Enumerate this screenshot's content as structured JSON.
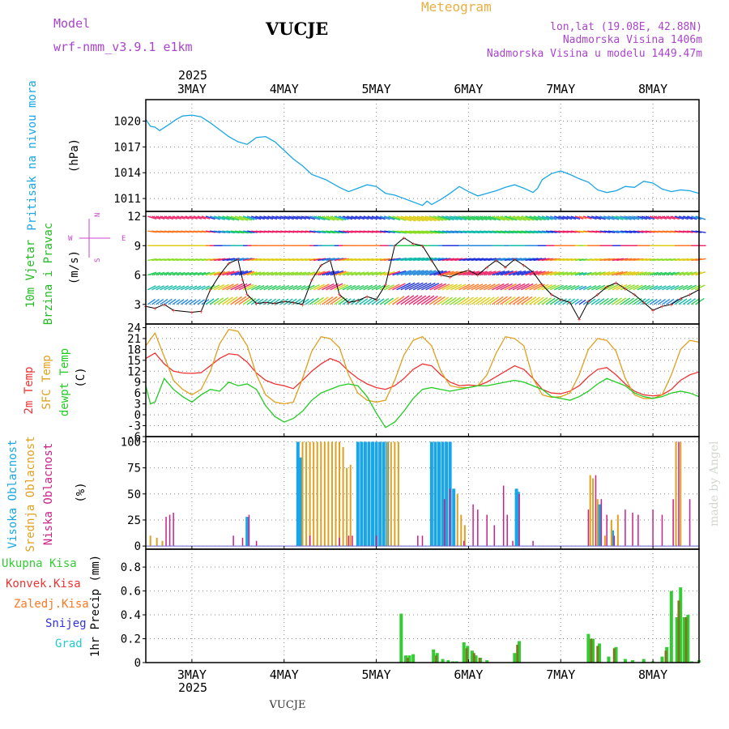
{
  "header": {
    "model_label": "Model",
    "model_value": "wrf-nmm_v3.9.1  e1km",
    "station": "VUCJE",
    "product": "Meteogram",
    "coords": "lon,lat (19.08E, 42.88N)",
    "elevation": "Nadmorska Visina 1406m",
    "model_elevation": "Nadmorska Visina u modelu 1449.47m",
    "footer_station": "VUCJE",
    "watermark": "made by Angel"
  },
  "colors": {
    "pressure": "#1aa6e6",
    "wind_label": "#22bb22",
    "temp2m": "#ee3333",
    "sfc": "#e0a020",
    "dewpt": "#22cc22",
    "high_cloud": "#1aa6e6",
    "mid_cloud": "#e0a020",
    "low_cloud": "#cc2288",
    "total_precip": "#33cc33",
    "convective": "#ee3333",
    "frozen": "#ff7722",
    "snow": "#3333dd",
    "hail": "#22cccc",
    "compass": "#cc44cc"
  },
  "chart_data": [
    {
      "type": "line",
      "panel": "pressure",
      "ylabel_lines": [
        "Pritisak na nivou mora",
        "(hPa)"
      ],
      "ylim": [
        1009.5,
        1022.5
      ],
      "yticks": [
        1011,
        1014,
        1017,
        1020
      ],
      "grid": true,
      "x_days": [
        2.5,
        8.5
      ],
      "day_ticks": [
        "3MAY",
        "4MAY",
        "5MAY",
        "6MAY",
        "7MAY",
        "8MAY"
      ],
      "year_label": "2025",
      "series": [
        {
          "x": [
            2.5,
            2.55,
            2.6,
            2.65,
            2.75,
            2.83,
            2.9,
            3.0,
            3.1,
            3.2,
            3.3,
            3.4,
            3.5,
            3.6,
            3.7,
            3.8,
            3.9,
            4.0,
            4.1,
            4.2,
            4.3,
            4.45,
            4.6,
            4.7,
            4.8,
            4.9,
            5.0,
            5.1,
            5.2,
            5.3,
            5.4,
            5.5,
            5.55,
            5.6,
            5.7,
            5.8,
            5.9,
            6.0,
            6.1,
            6.2,
            6.3,
            6.4,
            6.5,
            6.6,
            6.7,
            6.75,
            6.8,
            6.9,
            7.0,
            7.1,
            7.2,
            7.3,
            7.4,
            7.5,
            7.6,
            7.7,
            7.8,
            7.9,
            8.0,
            8.1,
            8.2,
            8.3,
            8.4,
            8.5
          ],
          "y": [
            1020.2,
            1019.4,
            1019.3,
            1018.9,
            1019.6,
            1020.2,
            1020.6,
            1020.7,
            1020.5,
            1019.8,
            1019.0,
            1018.2,
            1017.6,
            1017.3,
            1018.1,
            1018.2,
            1017.6,
            1016.6,
            1015.6,
            1014.8,
            1013.8,
            1013.2,
            1012.3,
            1011.8,
            1012.2,
            1012.6,
            1012.4,
            1011.6,
            1011.4,
            1011.0,
            1010.6,
            1010.2,
            1010.7,
            1010.3,
            1010.9,
            1011.6,
            1012.4,
            1011.8,
            1011.3,
            1011.6,
            1011.9,
            1012.3,
            1012.6,
            1012.2,
            1011.7,
            1012.2,
            1013.2,
            1013.9,
            1014.2,
            1013.8,
            1013.3,
            1012.9,
            1012.0,
            1011.7,
            1011.9,
            1012.4,
            1012.3,
            1013.0,
            1012.8,
            1012.1,
            1011.8,
            1012.0,
            1011.9,
            1011.6
          ]
        }
      ]
    },
    {
      "type": "line",
      "panel": "wind",
      "ylabel_lines": [
        "10m Vjetar",
        "Brzina i Pravac",
        "(m/s)"
      ],
      "compass": {
        "n": "N",
        "s": "S",
        "e": "E",
        "w": "W"
      },
      "ylim": [
        1,
        12.5
      ],
      "yticks": [
        3,
        6,
        9,
        12
      ],
      "grid": true,
      "series": [
        {
          "name": "speed",
          "x": [
            2.5,
            2.6,
            2.7,
            2.8,
            3.0,
            3.1,
            3.2,
            3.3,
            3.4,
            3.5,
            3.55,
            3.6,
            3.7,
            3.8,
            3.9,
            4.0,
            4.1,
            4.2,
            4.3,
            4.4,
            4.5,
            4.6,
            4.7,
            4.8,
            4.9,
            5.0,
            5.1,
            5.2,
            5.3,
            5.4,
            5.5,
            5.6,
            5.7,
            5.8,
            5.9,
            6.0,
            6.1,
            6.2,
            6.3,
            6.4,
            6.5,
            6.6,
            6.7,
            6.8,
            6.9,
            7.0,
            7.1,
            7.2,
            7.3,
            7.4,
            7.5,
            7.6,
            7.7,
            7.8,
            7.9,
            8.0,
            8.1,
            8.2,
            8.3,
            8.4,
            8.5
          ],
          "y": [
            2.8,
            2.6,
            3.0,
            2.4,
            2.2,
            2.3,
            4.5,
            6.0,
            7.2,
            7.6,
            5.5,
            4.0,
            3.1,
            3.2,
            3.1,
            3.3,
            3.2,
            3.0,
            5.5,
            7.0,
            7.5,
            4.0,
            3.2,
            3.4,
            3.8,
            3.5,
            5.0,
            9.0,
            9.8,
            9.2,
            9.0,
            7.5,
            6.0,
            5.8,
            6.2,
            6.5,
            6.0,
            6.8,
            7.5,
            6.8,
            7.6,
            7.0,
            6.3,
            5.0,
            4.0,
            3.5,
            3.2,
            1.5,
            3.3,
            4.0,
            4.8,
            5.2,
            4.6,
            4.0,
            3.2,
            2.4,
            2.8,
            3.0,
            3.6,
            4.0,
            4.5
          ]
        }
      ]
    },
    {
      "type": "line",
      "panel": "temperature",
      "ylabel_lines": [
        "2m Temp",
        "SFC Temp",
        "dewpt Temp",
        "(C)"
      ],
      "ylim": [
        -6,
        25
      ],
      "yticks": [
        -6,
        -3,
        0,
        3,
        6,
        9,
        12,
        15,
        18,
        21,
        24
      ],
      "grid": true,
      "series": [
        {
          "name": "2m Temp",
          "x": [
            2.5,
            2.6,
            2.7,
            2.8,
            2.9,
            3.0,
            3.1,
            3.2,
            3.3,
            3.4,
            3.5,
            3.6,
            3.7,
            3.8,
            3.9,
            4.0,
            4.1,
            4.2,
            4.3,
            4.4,
            4.5,
            4.6,
            4.7,
            4.8,
            4.9,
            5.0,
            5.1,
            5.2,
            5.3,
            5.4,
            5.5,
            5.6,
            5.7,
            5.8,
            5.9,
            6.0,
            6.1,
            6.2,
            6.3,
            6.4,
            6.5,
            6.6,
            6.7,
            6.8,
            6.9,
            7.0,
            7.1,
            7.2,
            7.3,
            7.4,
            7.5,
            7.6,
            7.7,
            7.8,
            7.9,
            8.0,
            8.1,
            8.2,
            8.3,
            8.4,
            8.5
          ],
          "y": [
            15.5,
            17.0,
            14.0,
            12.0,
            11.5,
            11.4,
            11.6,
            13.5,
            15.5,
            16.8,
            16.5,
            14.5,
            11.5,
            9.5,
            8.5,
            8.0,
            7.2,
            9.5,
            12.0,
            14.0,
            15.5,
            14.5,
            12.0,
            10.0,
            8.5,
            7.5,
            7.0,
            8.0,
            10.0,
            12.5,
            14.0,
            13.5,
            11.0,
            9.0,
            8.0,
            8.2,
            8.0,
            9.0,
            10.5,
            12.0,
            13.5,
            12.5,
            10.0,
            7.0,
            6.0,
            5.8,
            6.5,
            8.0,
            10.5,
            12.5,
            13.0,
            11.0,
            8.5,
            6.5,
            5.5,
            5.2,
            5.5,
            7.0,
            9.5,
            11.0,
            11.8
          ]
        },
        {
          "name": "SFC Temp",
          "x": [
            2.5,
            2.6,
            2.7,
            2.8,
            2.9,
            3.0,
            3.1,
            3.2,
            3.3,
            3.4,
            3.5,
            3.6,
            3.7,
            3.8,
            3.9,
            4.0,
            4.1,
            4.2,
            4.3,
            4.4,
            4.5,
            4.6,
            4.7,
            4.8,
            4.9,
            5.0,
            5.1,
            5.2,
            5.3,
            5.4,
            5.5,
            5.6,
            5.7,
            5.8,
            5.9,
            6.0,
            6.1,
            6.2,
            6.3,
            6.4,
            6.5,
            6.6,
            6.7,
            6.8,
            6.9,
            7.0,
            7.1,
            7.2,
            7.3,
            7.4,
            7.5,
            7.6,
            7.7,
            7.8,
            7.9,
            8.0,
            8.1,
            8.2,
            8.3,
            8.4,
            8.5
          ],
          "y": [
            19.0,
            22.5,
            16.0,
            9.5,
            7.0,
            5.5,
            7.0,
            12.0,
            19.5,
            23.5,
            23.0,
            19.0,
            11.0,
            5.5,
            3.5,
            3.0,
            3.5,
            10.0,
            17.5,
            21.5,
            21.0,
            18.5,
            11.0,
            6.0,
            4.0,
            3.5,
            4.0,
            9.5,
            16.5,
            20.5,
            21.5,
            19.0,
            12.0,
            8.0,
            7.5,
            7.5,
            8.0,
            11.0,
            17.0,
            21.5,
            21.0,
            19.0,
            10.0,
            5.5,
            4.8,
            5.0,
            6.0,
            11.0,
            18.0,
            21.0,
            20.5,
            17.5,
            10.0,
            5.5,
            4.5,
            4.5,
            5.5,
            11.0,
            18.0,
            20.5,
            20.0
          ]
        },
        {
          "name": "dewpt Temp",
          "x": [
            2.5,
            2.55,
            2.6,
            2.7,
            2.8,
            2.9,
            3.0,
            3.1,
            3.2,
            3.3,
            3.4,
            3.5,
            3.6,
            3.7,
            3.8,
            3.9,
            4.0,
            4.1,
            4.2,
            4.3,
            4.4,
            4.5,
            4.6,
            4.7,
            4.8,
            4.9,
            5.0,
            5.1,
            5.2,
            5.3,
            5.4,
            5.5,
            5.6,
            5.7,
            5.8,
            5.9,
            6.0,
            6.1,
            6.2,
            6.3,
            6.4,
            6.5,
            6.6,
            6.7,
            6.8,
            6.9,
            7.0,
            7.1,
            7.2,
            7.3,
            7.4,
            7.5,
            7.6,
            7.7,
            7.8,
            7.9,
            8.0,
            8.1,
            8.2,
            8.3,
            8.4,
            8.5
          ],
          "y": [
            8.0,
            3.0,
            3.5,
            10.0,
            7.0,
            5.0,
            3.5,
            5.5,
            7.0,
            6.5,
            9.0,
            8.0,
            8.5,
            7.0,
            2.5,
            -0.5,
            -2.0,
            -1.0,
            1.0,
            4.0,
            6.0,
            7.0,
            8.0,
            8.5,
            8.0,
            5.0,
            0.5,
            -3.5,
            -2.0,
            1.0,
            4.5,
            7.0,
            7.5,
            7.0,
            6.5,
            7.0,
            7.5,
            8.0,
            8.0,
            8.5,
            9.0,
            9.5,
            9.0,
            8.0,
            7.0,
            5.0,
            4.5,
            4.0,
            5.0,
            6.5,
            8.5,
            10.0,
            9.0,
            8.0,
            6.0,
            5.0,
            4.5,
            5.0,
            6.0,
            6.5,
            6.0,
            5.0
          ]
        }
      ]
    },
    {
      "type": "bar",
      "panel": "cloud",
      "ylabel_lines": [
        "Visoka Oblacnost",
        "Srednja Oblacnost",
        "Niska Oblacnost",
        "(%)"
      ],
      "ylim": [
        -3,
        105
      ],
      "yticks": [
        0,
        25,
        50,
        75,
        100
      ],
      "grid": true,
      "series": [
        {
          "name": "Visoka Oblacnost",
          "x": [
            3.6,
            4.15,
            4.18,
            4.8,
            4.84,
            4.88,
            4.92,
            4.96,
            5.0,
            5.04,
            5.08,
            5.12,
            5.6,
            5.64,
            5.68,
            5.72,
            5.76,
            5.8,
            5.84,
            6.52,
            6.54,
            7.42,
            7.56
          ],
          "values": [
            28,
            100,
            85,
            100,
            100,
            100,
            100,
            100,
            100,
            100,
            100,
            100,
            100,
            100,
            100,
            100,
            100,
            100,
            55,
            55,
            52,
            40,
            15
          ]
        },
        {
          "name": "Srednja Oblacnost",
          "x": [
            2.55,
            2.62,
            2.68,
            4.2,
            4.24,
            4.28,
            4.32,
            4.36,
            4.4,
            4.44,
            4.48,
            4.52,
            4.56,
            4.6,
            4.64,
            4.68,
            4.72,
            5.12,
            5.16,
            5.2,
            5.24,
            5.88,
            5.92,
            5.96,
            7.32,
            7.35,
            7.4,
            7.48,
            7.55,
            7.62,
            8.25,
            8.3
          ],
          "values": [
            10,
            8,
            5,
            100,
            100,
            100,
            100,
            100,
            100,
            100,
            100,
            100,
            100,
            100,
            95,
            75,
            78,
            100,
            100,
            100,
            100,
            50,
            30,
            20,
            68,
            65,
            45,
            10,
            25,
            30,
            100,
            100
          ]
        },
        {
          "name": "Niska Oblacnost",
          "x": [
            2.72,
            2.76,
            2.8,
            3.45,
            3.55,
            3.62,
            3.7,
            4.28,
            4.6,
            4.7,
            4.74,
            5.0,
            5.45,
            5.5,
            5.74,
            5.8,
            5.95,
            6.05,
            6.1,
            6.2,
            6.28,
            6.38,
            6.42,
            6.48,
            6.55,
            6.7,
            7.3,
            7.38,
            7.44,
            7.5,
            7.58,
            7.7,
            7.78,
            7.84,
            8.0,
            8.1,
            8.22,
            8.28,
            8.4
          ],
          "values": [
            28,
            30,
            32,
            10,
            8,
            30,
            5,
            10,
            8,
            10,
            10,
            10,
            10,
            10,
            45,
            55,
            5,
            40,
            35,
            30,
            20,
            58,
            30,
            5,
            50,
            5,
            35,
            68,
            45,
            30,
            10,
            35,
            32,
            30,
            35,
            30,
            45,
            100,
            45
          ]
        }
      ]
    },
    {
      "type": "bar",
      "panel": "precip",
      "ylabel_lines": [
        "1hr Precip (mm)"
      ],
      "legend": [
        "Ukupna Kisa",
        "Konvek.Kisa",
        "Zaledj.Kisa",
        "Snijeg",
        "Grad"
      ],
      "ylim": [
        0,
        0.95
      ],
      "yticks": [
        0,
        0.2,
        0.4,
        0.6,
        0.8
      ],
      "grid": true,
      "series": [
        {
          "name": "Ukupna Kisa",
          "x": [
            5.27,
            5.32,
            5.36,
            5.4,
            5.62,
            5.66,
            5.72,
            5.78,
            5.83,
            5.87,
            5.95,
            5.99,
            6.04,
            6.08,
            6.13,
            6.2,
            6.5,
            6.55,
            7.3,
            7.35,
            7.42,
            7.52,
            7.6,
            7.7,
            7.78,
            7.9,
            8.0,
            8.1,
            8.15,
            8.2,
            8.26,
            8.3,
            8.34,
            8.38,
            8.42,
            8.5
          ],
          "values": [
            0.41,
            0.06,
            0.06,
            0.07,
            0.11,
            0.08,
            0.03,
            0.02,
            0.01,
            0.01,
            0.17,
            0.14,
            0.1,
            0.06,
            0.04,
            0.02,
            0.08,
            0.18,
            0.24,
            0.2,
            0.16,
            0.05,
            0.13,
            0.03,
            0.02,
            0.03,
            0.01,
            0.05,
            0.13,
            0.6,
            0.38,
            0.63,
            0.38,
            0.4,
            0.01,
            0.02
          ]
        },
        {
          "name": "Konvek.Kisa",
          "x": [
            5.34,
            5.65,
            5.98,
            6.06,
            6.12,
            6.53,
            7.33,
            7.4,
            7.58,
            8.14,
            8.28,
            8.36
          ],
          "values": [
            0.04,
            0.06,
            0.12,
            0.08,
            0.04,
            0.15,
            0.2,
            0.14,
            0.12,
            0.1,
            0.52,
            0.38
          ]
        }
      ]
    }
  ]
}
